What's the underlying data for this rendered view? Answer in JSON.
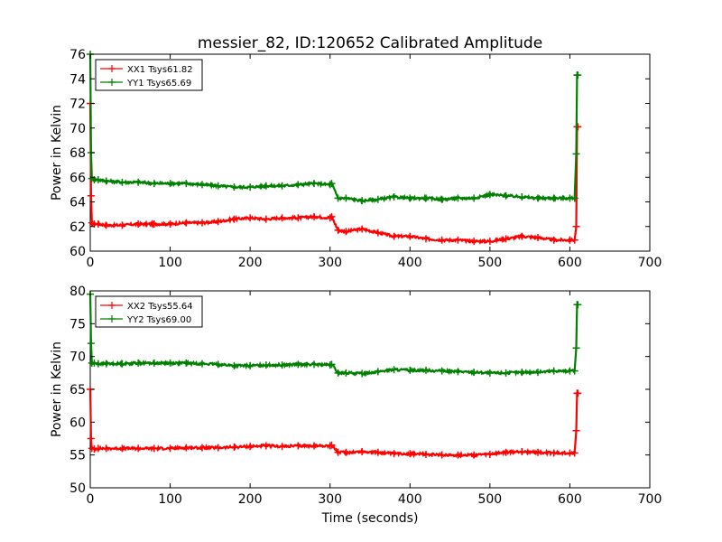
{
  "figure": {
    "title": "messier_82, ID:120652 Calibrated Amplitude",
    "xlabel": "Time (seconds)"
  },
  "chart_data": [
    {
      "type": "line",
      "title": "messier_82, ID:120652 Calibrated Amplitude",
      "xlabel": "",
      "ylabel": "Power in Kelvin",
      "xlim": [
        0,
        700
      ],
      "ylim": [
        60,
        76
      ],
      "xticks": [
        0,
        100,
        200,
        300,
        400,
        500,
        600,
        700
      ],
      "yticks": [
        60,
        62,
        64,
        66,
        68,
        70,
        72,
        74,
        76
      ],
      "legend_position": "top-left",
      "grid": false,
      "series": [
        {
          "name": "XX1 Tsys61.82",
          "color": "#ff0000",
          "marker": "+",
          "x": [
            0,
            1,
            2,
            5,
            10,
            20,
            40,
            60,
            80,
            100,
            120,
            140,
            160,
            180,
            200,
            220,
            240,
            260,
            280,
            300,
            302,
            310,
            320,
            340,
            360,
            380,
            400,
            420,
            440,
            460,
            480,
            500,
            520,
            540,
            560,
            580,
            600,
            606,
            608,
            609,
            610
          ],
          "values": [
            72.0,
            64.5,
            62.3,
            62.2,
            62.2,
            62.1,
            62.1,
            62.2,
            62.2,
            62.2,
            62.3,
            62.3,
            62.4,
            62.6,
            62.7,
            62.6,
            62.7,
            62.7,
            62.8,
            62.7,
            62.8,
            61.7,
            61.6,
            61.8,
            61.5,
            61.2,
            61.2,
            61.0,
            60.9,
            60.9,
            60.8,
            60.8,
            61.0,
            61.2,
            61.1,
            60.9,
            60.9,
            60.9,
            62.0,
            70.1,
            70.1
          ]
        },
        {
          "name": "YY1 Tsys65.69",
          "color": "#008000",
          "marker": "+",
          "x": [
            0,
            1,
            2,
            5,
            10,
            20,
            40,
            60,
            80,
            100,
            120,
            140,
            160,
            180,
            200,
            220,
            240,
            260,
            280,
            300,
            302,
            310,
            320,
            340,
            360,
            380,
            400,
            420,
            440,
            460,
            480,
            500,
            520,
            540,
            560,
            580,
            600,
            606,
            608,
            609,
            610
          ],
          "values": [
            76.0,
            68.0,
            65.9,
            65.8,
            65.8,
            65.7,
            65.6,
            65.6,
            65.5,
            65.5,
            65.5,
            65.4,
            65.3,
            65.2,
            65.2,
            65.3,
            65.3,
            65.4,
            65.5,
            65.4,
            65.5,
            64.3,
            64.3,
            64.1,
            64.2,
            64.4,
            64.3,
            64.3,
            64.2,
            64.3,
            64.3,
            64.6,
            64.5,
            64.4,
            64.3,
            64.3,
            64.3,
            64.3,
            67.9,
            74.3,
            74.3
          ]
        }
      ]
    },
    {
      "type": "line",
      "title": "",
      "xlabel": "Time (seconds)",
      "ylabel": "Power in Kelvin",
      "xlim": [
        0,
        700
      ],
      "ylim": [
        50,
        80
      ],
      "xticks": [
        0,
        100,
        200,
        300,
        400,
        500,
        600,
        700
      ],
      "yticks": [
        50,
        55,
        60,
        65,
        70,
        75,
        80
      ],
      "legend_position": "top-left",
      "grid": false,
      "series": [
        {
          "name": "XX2 Tsys55.64",
          "color": "#ff0000",
          "marker": "+",
          "x": [
            0,
            1,
            2,
            5,
            10,
            20,
            40,
            60,
            80,
            100,
            120,
            140,
            160,
            180,
            200,
            220,
            240,
            260,
            280,
            300,
            302,
            310,
            320,
            340,
            360,
            380,
            400,
            420,
            440,
            460,
            480,
            500,
            520,
            540,
            560,
            580,
            600,
            606,
            608,
            609,
            610
          ],
          "values": [
            65.0,
            57.5,
            56.0,
            55.9,
            56.0,
            56.0,
            56.0,
            56.0,
            56.0,
            56.0,
            56.1,
            56.1,
            56.1,
            56.2,
            56.3,
            56.4,
            56.3,
            56.4,
            56.4,
            56.4,
            56.5,
            55.4,
            55.4,
            55.5,
            55.4,
            55.2,
            55.2,
            55.1,
            55.0,
            55.0,
            55.0,
            55.1,
            55.4,
            55.5,
            55.4,
            55.3,
            55.3,
            55.3,
            58.7,
            64.4,
            64.4
          ]
        },
        {
          "name": "YY2 Tsys69.00",
          "color": "#008000",
          "marker": "+",
          "x": [
            0,
            1,
            2,
            5,
            10,
            20,
            40,
            60,
            80,
            100,
            120,
            140,
            160,
            180,
            200,
            220,
            240,
            260,
            280,
            300,
            302,
            310,
            320,
            340,
            360,
            380,
            400,
            420,
            440,
            460,
            480,
            500,
            520,
            540,
            560,
            580,
            600,
            606,
            608,
            609,
            610
          ],
          "values": [
            79.5,
            72.0,
            69.0,
            69.0,
            68.9,
            68.9,
            68.9,
            69.0,
            69.0,
            69.0,
            69.0,
            68.9,
            68.8,
            68.6,
            68.6,
            68.7,
            68.7,
            68.8,
            68.8,
            68.7,
            68.8,
            67.5,
            67.5,
            67.4,
            67.7,
            68.0,
            67.9,
            67.9,
            67.8,
            67.7,
            67.6,
            67.5,
            67.5,
            67.6,
            67.6,
            67.8,
            67.8,
            67.8,
            71.3,
            77.9,
            77.9
          ]
        }
      ]
    }
  ]
}
